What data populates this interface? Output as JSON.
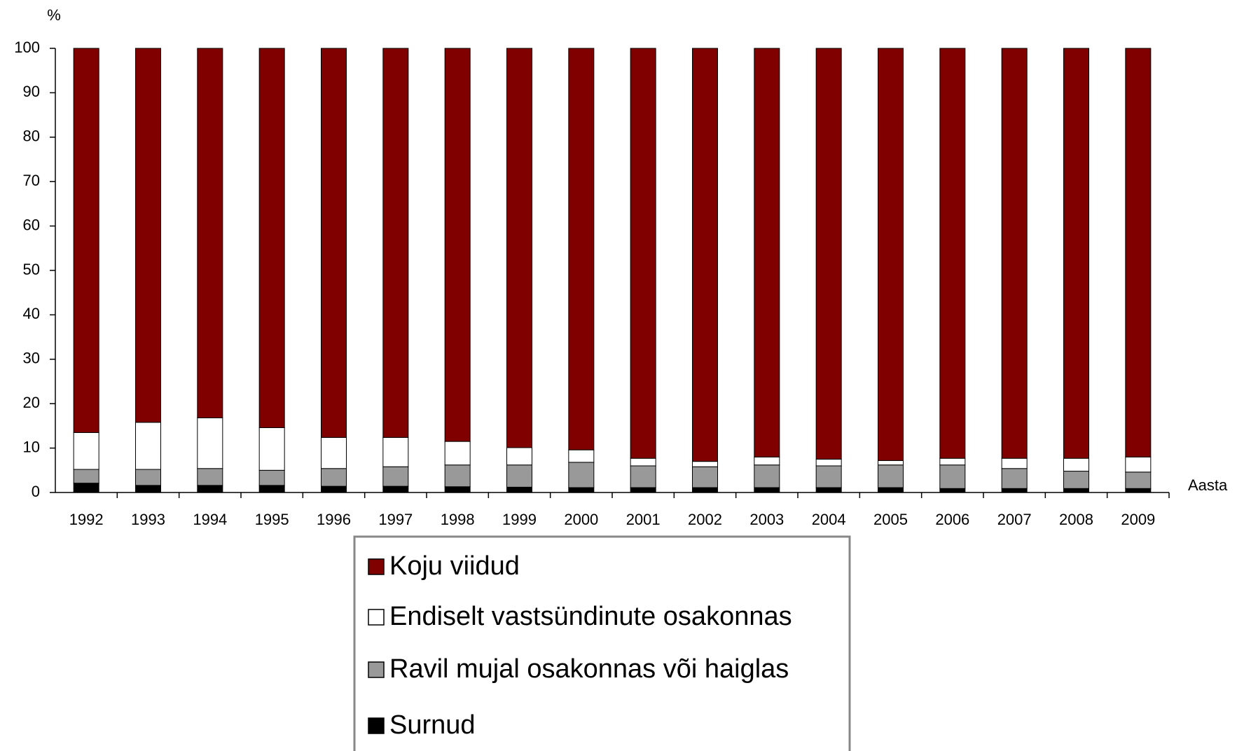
{
  "chart_data": {
    "type": "stacked_bar",
    "y_label": "%",
    "x_label": "Aasta",
    "categories": [
      "1992",
      "1993",
      "1994",
      "1995",
      "1996",
      "1997",
      "1998",
      "1999",
      "2000",
      "2001",
      "2002",
      "2003",
      "2004",
      "2005",
      "2006",
      "2007",
      "2008",
      "2009"
    ],
    "series": [
      {
        "name": "Surnud",
        "color": "#000000",
        "values": [
          2.1,
          1.6,
          1.6,
          1.6,
          1.4,
          1.4,
          1.3,
          1.2,
          1.1,
          1.1,
          1.1,
          1.1,
          1.1,
          1.1,
          0.9,
          0.9,
          0.9,
          0.9
        ]
      },
      {
        "name": "Ravil mujal osakonnas või haiglas",
        "color": "#999999",
        "values": [
          3.1,
          3.6,
          3.8,
          3.4,
          4.0,
          4.4,
          4.9,
          5.0,
          5.7,
          4.9,
          4.7,
          5.1,
          4.9,
          5.1,
          5.3,
          4.5,
          3.9,
          3.7
        ]
      },
      {
        "name": "Endiselt vastsündinute osakonnas",
        "color": "#ffffff",
        "values": [
          8.3,
          10.6,
          11.4,
          9.6,
          7.0,
          6.6,
          5.3,
          3.9,
          2.8,
          1.7,
          1.2,
          1.8,
          1.5,
          1.0,
          1.5,
          2.3,
          2.9,
          3.4
        ]
      },
      {
        "name": "Koju viidud",
        "color": "#800000",
        "values": [
          86.5,
          84.2,
          83.2,
          85.4,
          87.6,
          87.6,
          88.5,
          89.9,
          90.4,
          92.3,
          93.0,
          92.0,
          92.5,
          92.8,
          92.3,
          92.3,
          92.3,
          92.0
        ]
      }
    ],
    "ylim": [
      0,
      100
    ],
    "yticks": [
      0,
      10,
      20,
      30,
      40,
      50,
      60,
      70,
      80,
      90,
      100
    ],
    "grid": false
  }
}
